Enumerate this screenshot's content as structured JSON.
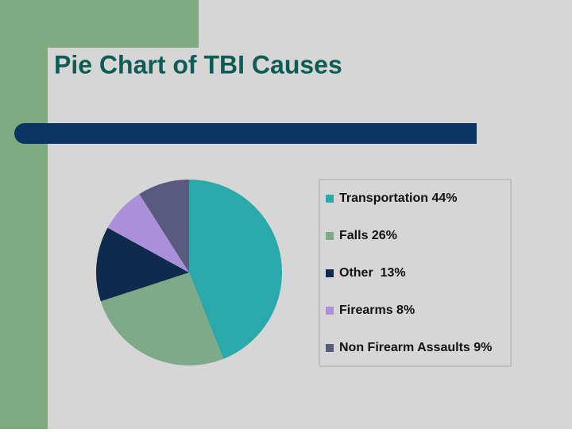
{
  "chart_data": {
    "type": "pie",
    "title": "Pie Chart of TBI Causes",
    "categories": [
      "Transportation 44%",
      "Falls 26%",
      "Other  13%",
      "Firearms 8%",
      "Non Firearm Assaults 9%"
    ],
    "values": [
      44,
      26,
      13,
      8,
      9
    ],
    "colors": [
      "#2ba9aa",
      "#7faa88",
      "#0e2a4c",
      "#aa90d8",
      "#5a5a80"
    ]
  }
}
